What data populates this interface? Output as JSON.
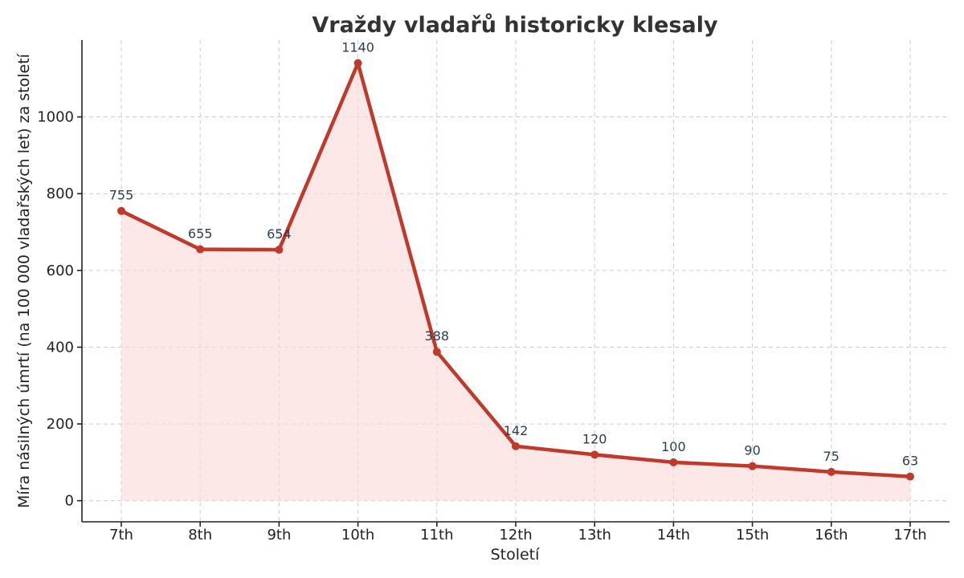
{
  "chart_data": {
    "type": "line",
    "title": "Vraždy vladařů historicky klesaly",
    "xlabel": "Století",
    "ylabel": "Míra násilných úmrtí (na 100 000 vladařských let) za století",
    "categories": [
      "7th",
      "8th",
      "9th",
      "10th",
      "11th",
      "12th",
      "13th",
      "14th",
      "15th",
      "16th",
      "17th"
    ],
    "series": [
      {
        "values": [
          755,
          655,
          654,
          1140,
          388,
          142,
          120,
          100,
          90,
          75,
          63
        ]
      }
    ],
    "data_labels": [
      "755",
      "655",
      "654",
      "1140",
      "388",
      "142",
      "120",
      "100",
      "90",
      "75",
      "63"
    ],
    "yticks": [
      0,
      200,
      400,
      600,
      800,
      1000
    ],
    "ytick_labels": [
      "0",
      "200",
      "400",
      "600",
      "800",
      "1000"
    ],
    "ylim": [
      -55,
      1200
    ],
    "grid": true,
    "area_fill": true,
    "colors": {
      "line": "#c0392b",
      "fill": "#fadbd8",
      "marker": "#c0392b"
    }
  }
}
